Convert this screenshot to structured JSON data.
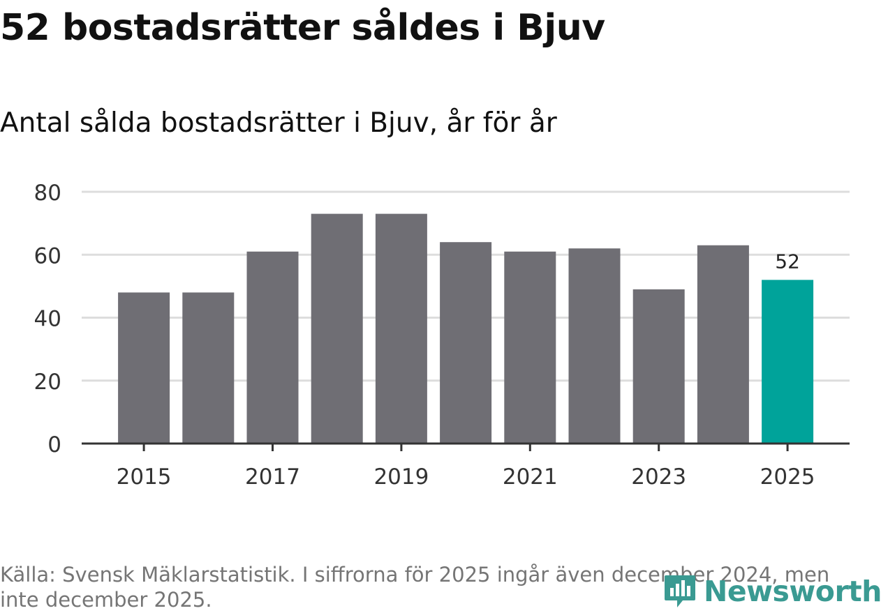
{
  "title": "52 bostadsrätter såldes i Bjuv",
  "subtitle": "Antal sålda bostadsrätter i Bjuv, år för år",
  "footer": "Källa: Svensk Mäklarstatistik. I siffrorna för 2025 ingår även december 2024, men inte december 2025.",
  "logo_text": "Newsworthy",
  "colors": {
    "bar": "#6f6e74",
    "highlight": "#00a39a",
    "grid": "#dddddd",
    "axis": "#333333",
    "text": "#333333"
  },
  "chart_data": {
    "type": "bar",
    "title": "52 bostadsrätter såldes i Bjuv",
    "subtitle": "Antal sålda bostadsrätter i Bjuv, år för år",
    "xlabel": "",
    "ylabel": "",
    "categories": [
      "2015",
      "2016",
      "2017",
      "2018",
      "2019",
      "2020",
      "2021",
      "2022",
      "2023",
      "2024",
      "2025"
    ],
    "values": [
      48,
      48,
      61,
      73,
      73,
      64,
      61,
      62,
      49,
      63,
      52
    ],
    "ylim": [
      0,
      80
    ],
    "yticks": [
      0,
      20,
      40,
      60,
      80
    ],
    "xtick_labels": [
      "2015",
      "2017",
      "2019",
      "2021",
      "2023",
      "2025"
    ],
    "highlight_index": 10,
    "data_label": "52",
    "grid": true
  }
}
